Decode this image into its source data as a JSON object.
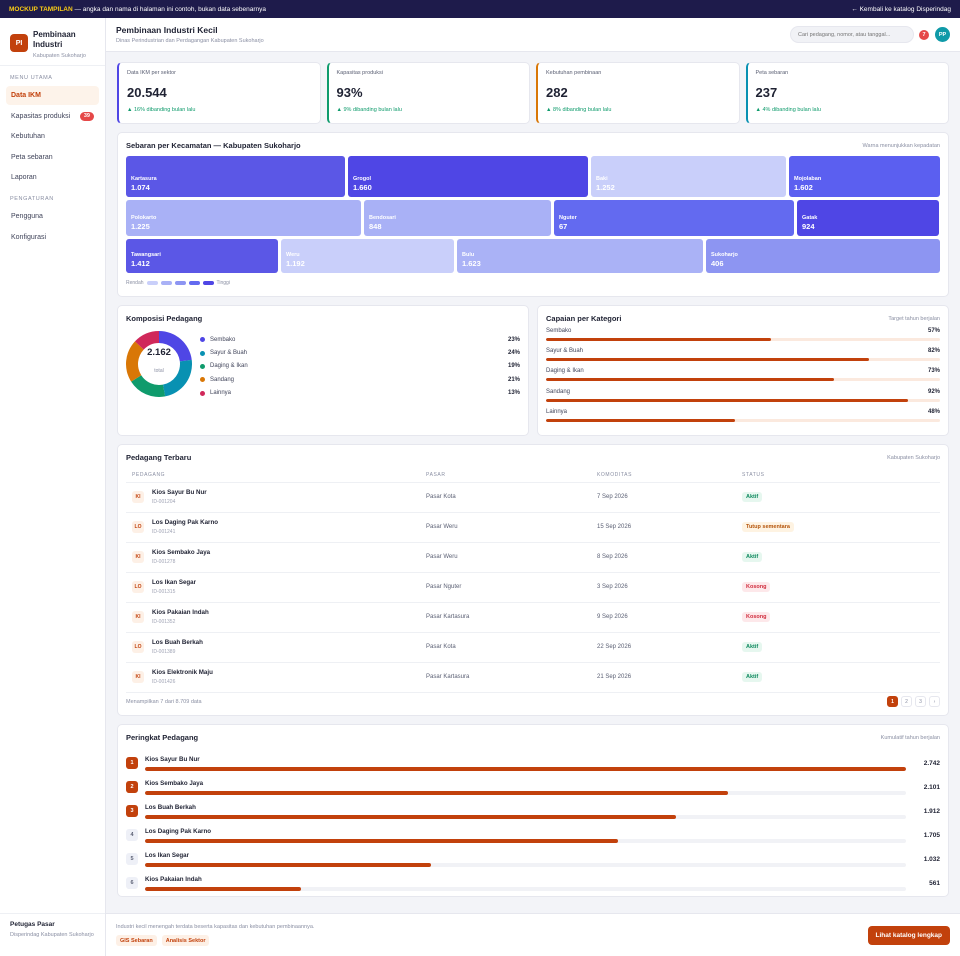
{
  "banner": {
    "tag": "MOCKUP TAMPILAN",
    "text": " — angka dan nama di halaman ini contoh, bukan data sebenarnya",
    "back_link": "← Kembali ke katalog Disperindag"
  },
  "sidebar": {
    "logo": "PI",
    "title": "Pembinaan Industri",
    "subtitle": "Kabupaten Sukoharjo",
    "sections": [
      {
        "label": "MENU UTAMA",
        "items": [
          {
            "label": "Data IKM",
            "active": true
          },
          {
            "label": "Kapasitas produksi",
            "badge": "39"
          },
          {
            "label": "Kebutuhan"
          },
          {
            "label": "Peta sebaran"
          },
          {
            "label": "Laporan"
          }
        ]
      },
      {
        "label": "PENGATURAN",
        "items": [
          {
            "label": "Pengguna"
          },
          {
            "label": "Konfigurasi"
          }
        ]
      }
    ],
    "footer": {
      "name": "Petugas Pasar",
      "org": "Disperindag Kabupaten Sukoharjo"
    }
  },
  "topbar": {
    "title": "Pembinaan Industri Kecil",
    "subtitle": "Dinas Perindustrian dan Perdagangan Kabupaten Sukoharjo",
    "search_placeholder": "Cari pedagang, nomor, atau tanggal...",
    "notif_count": "7",
    "avatar": "PP"
  },
  "kpis": [
    {
      "label": "Data IKM per sektor",
      "value": "20.544",
      "delta": "▲ 16% dibanding bulan lalu",
      "color": "#4f46e5"
    },
    {
      "label": "Kapasitas produksi",
      "value": "93%",
      "delta": "▲ 9% dibanding bulan lalu",
      "color": "#0f9b6c"
    },
    {
      "label": "Kebutuhan pembinaan",
      "value": "282",
      "delta": "▲ 8% dibanding bulan lalu",
      "color": "#d97706"
    },
    {
      "label": "Peta sebaran",
      "value": "237",
      "delta": "▲ 4% dibanding bulan lalu",
      "color": "#0891b2"
    }
  ],
  "treemap": {
    "title": "Sebaran per Kecamatan — Kabupaten Sukoharjo",
    "note": "Warna menunjukkan kepadatan",
    "rows": [
      [
        {
          "name": "Kartasura",
          "value": "1.074",
          "color": "#5b57e6"
        },
        {
          "name": "Grogol",
          "value": "1.660",
          "color": "#4f46e5"
        },
        {
          "name": "Baki",
          "value": "1.252",
          "color": "#c9cffa"
        },
        {
          "name": "Mojolaban",
          "value": "1.602",
          "color": "#5b5ff0"
        }
      ],
      [
        {
          "name": "Polokarto",
          "value": "1.225",
          "color": "#a9b1f6"
        },
        {
          "name": "Bendosari",
          "value": "848",
          "color": "#a9b1f6"
        },
        {
          "name": "Nguter",
          "value": "67",
          "color": "#636af0"
        },
        {
          "name": "Gatak",
          "value": "924",
          "color": "#4f46e5"
        }
      ],
      [
        {
          "name": "Tawangsari",
          "value": "1.412",
          "color": "#5b57e6"
        },
        {
          "name": "Weru",
          "value": "1.192",
          "color": "#c9cffa"
        },
        {
          "name": "Bulu",
          "value": "1.623",
          "color": "#aab2f6"
        },
        {
          "name": "Sukoharjo",
          "value": "406",
          "color": "#8d95f2"
        }
      ]
    ],
    "legend_low": "Rendah",
    "legend_high": "Tinggi",
    "legend_colors": [
      "#c9cffa",
      "#a9b1f6",
      "#8d95f2",
      "#636af0",
      "#4f46e5"
    ]
  },
  "composition": {
    "title": "Komposisi Pedagang",
    "total": "2.162",
    "total_label": "total",
    "items": [
      {
        "name": "Sembako",
        "pct": "23%",
        "value": 23,
        "color": "#4f46e5"
      },
      {
        "name": "Sayur & Buah",
        "pct": "24%",
        "value": 24,
        "color": "#0891b2"
      },
      {
        "name": "Daging & Ikan",
        "pct": "19%",
        "value": 19,
        "color": "#0f9b6c"
      },
      {
        "name": "Sandang",
        "pct": "21%",
        "value": 21,
        "color": "#d97706"
      },
      {
        "name": "Lainnya",
        "pct": "13%",
        "value": 13,
        "color": "#d0285a"
      }
    ]
  },
  "achievement": {
    "title": "Capaian per Kategori",
    "note": "Target tahun berjalan",
    "items": [
      {
        "name": "Sembako",
        "pct": "57%",
        "value": 57
      },
      {
        "name": "Sayur & Buah",
        "pct": "82%",
        "value": 82
      },
      {
        "name": "Daging & Ikan",
        "pct": "73%",
        "value": 73
      },
      {
        "name": "Sandang",
        "pct": "92%",
        "value": 92
      },
      {
        "name": "Lainnya",
        "pct": "48%",
        "value": 48
      }
    ]
  },
  "table": {
    "title": "Pedagang Terbaru",
    "note": "Kabupaten Sukoharjo",
    "columns": [
      "PEDAGANG",
      "PASAR",
      "KOMODITAS",
      "STATUS"
    ],
    "rows": [
      {
        "ini": "KI",
        "name": "Kios Sayur Bu Nur",
        "id": "ID-001204",
        "pasar": "Pasar Kota",
        "date": "7 Sep 2026",
        "status": "Aktif",
        "kind": "aktif"
      },
      {
        "ini": "LO",
        "name": "Los Daging Pak Karno",
        "id": "ID-001241",
        "pasar": "Pasar Weru",
        "date": "15 Sep 2026",
        "status": "Tutup sementara",
        "kind": "tutup"
      },
      {
        "ini": "KI",
        "name": "Kios Sembako Jaya",
        "id": "ID-001278",
        "pasar": "Pasar Weru",
        "date": "8 Sep 2026",
        "status": "Aktif",
        "kind": "aktif"
      },
      {
        "ini": "LO",
        "name": "Los Ikan Segar",
        "id": "ID-001315",
        "pasar": "Pasar Nguter",
        "date": "3 Sep 2026",
        "status": "Kosong",
        "kind": "kosong"
      },
      {
        "ini": "KI",
        "name": "Kios Pakaian Indah",
        "id": "ID-001352",
        "pasar": "Pasar Kartasura",
        "date": "9 Sep 2026",
        "status": "Kosong",
        "kind": "kosong"
      },
      {
        "ini": "LO",
        "name": "Los Buah Berkah",
        "id": "ID-001389",
        "pasar": "Pasar Kota",
        "date": "22 Sep 2026",
        "status": "Aktif",
        "kind": "aktif"
      },
      {
        "ini": "KI",
        "name": "Kios Elektronik Maju",
        "id": "ID-001426",
        "pasar": "Pasar Kartasura",
        "date": "21 Sep 2026",
        "status": "Aktif",
        "kind": "aktif"
      }
    ],
    "count_text": "Menampilkan 7 dari 8.709 data",
    "pages": [
      "1",
      "2",
      "3",
      "›"
    ]
  },
  "ranking": {
    "title": "Peringkat Pedagang",
    "note": "Kumulatif tahun berjalan",
    "items": [
      {
        "rank": "1",
        "name": "Kios Sayur Bu Nur",
        "value": "2.742",
        "num": 2742
      },
      {
        "rank": "2",
        "name": "Kios Sembako Jaya",
        "value": "2.101",
        "num": 2101
      },
      {
        "rank": "3",
        "name": "Los Buah Berkah",
        "value": "1.912",
        "num": 1912
      },
      {
        "rank": "4",
        "name": "Los Daging Pak Karno",
        "value": "1.705",
        "num": 1705
      },
      {
        "rank": "5",
        "name": "Los Ikan Segar",
        "value": "1.032",
        "num": 1032
      },
      {
        "rank": "6",
        "name": "Kios Pakaian Indah",
        "value": "561",
        "num": 561
      }
    ]
  },
  "footer": {
    "text": "Industri kecil menengah terdata beserta kapasitas dan kebutuhan pembinaannya.",
    "tags": [
      "GIS Sebaran",
      "Analisis Sektor"
    ],
    "cta": "Lihat katalog lengkap"
  }
}
